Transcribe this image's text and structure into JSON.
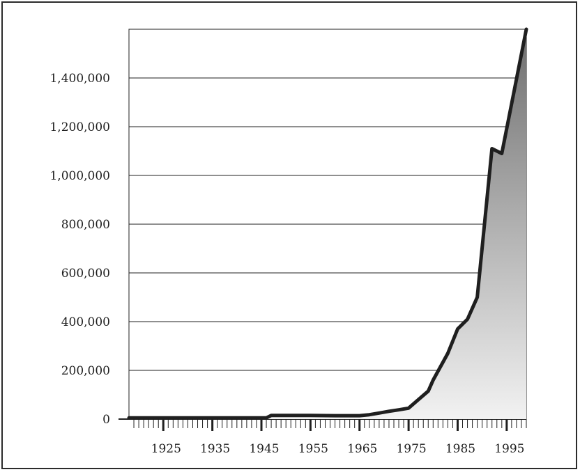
{
  "chart_data": {
    "type": "area",
    "title": "",
    "xlabel": "",
    "ylabel": "",
    "xlim": [
      1918,
      1999
    ],
    "ylim": [
      0,
      1600000
    ],
    "grid": true,
    "legend": "none",
    "yticks": [
      0,
      200000,
      400000,
      600000,
      800000,
      1000000,
      1200000,
      1400000
    ],
    "ytick_labels": [
      "0",
      "200,000",
      "400,000",
      "600,000",
      "800,000",
      "1,000,000",
      "1,200,000",
      "1,400,000"
    ],
    "xticks": [
      1925,
      1935,
      1945,
      1955,
      1965,
      1975,
      1985,
      1995
    ],
    "xtick_labels": [
      "1925",
      "1935",
      "1945",
      "1955",
      "1965",
      "1975",
      "1985",
      "1995"
    ],
    "series": [
      {
        "x": [
          1918,
          1930,
          1946,
          1947,
          1950,
          1955,
          1960,
          1965,
          1967,
          1969,
          1971,
          1973,
          1975,
          1977,
          1979,
          1980,
          1983,
          1985,
          1987,
          1989,
          1992,
          1994,
          1999
        ],
        "values": [
          5000,
          5000,
          5000,
          15000,
          15000,
          15000,
          14000,
          14000,
          18000,
          25000,
          32000,
          38000,
          45000,
          80000,
          115000,
          160000,
          270000,
          370000,
          410000,
          500000,
          1110000,
          1090000,
          1600000
        ]
      }
    ],
    "colors": {
      "line": "#1f1f1f",
      "fill_top": "#6e6e6e",
      "fill_bottom": "#f2f2f2",
      "grid": "#1f1f1f"
    }
  }
}
